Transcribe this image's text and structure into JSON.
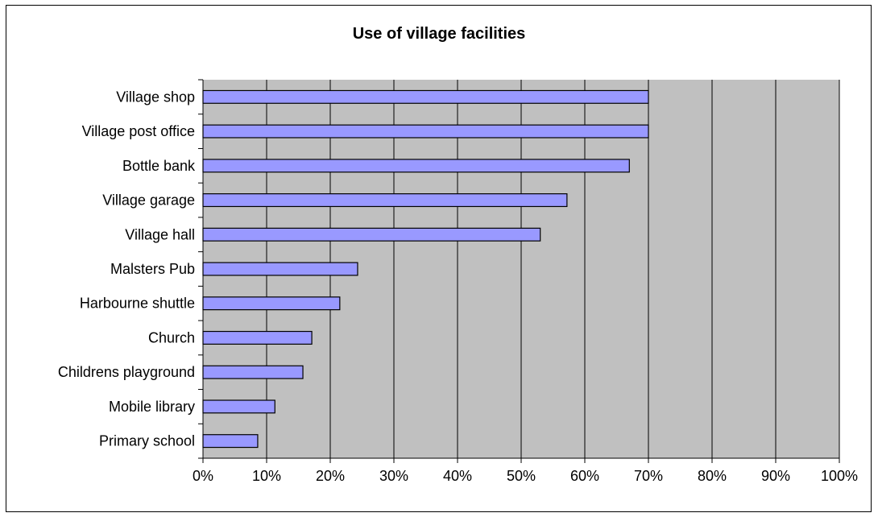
{
  "chart_data": {
    "type": "bar",
    "orientation": "horizontal",
    "title": "Use of village facilities",
    "xlabel": "",
    "ylabel": "",
    "categories": [
      "Village shop",
      "Village post office",
      "Bottle bank",
      "Village garage",
      "Village hall",
      "Malsters Pub",
      "Harbourne shuttle",
      "Church",
      "Childrens playground",
      "Mobile library",
      "Primary school"
    ],
    "values": [
      70,
      70,
      67,
      57.2,
      53,
      24.3,
      21.5,
      17.1,
      15.7,
      11.3,
      8.6
    ],
    "xlim": [
      0,
      100
    ],
    "x_ticks": [
      "0%",
      "10%",
      "20%",
      "30%",
      "40%",
      "50%",
      "60%",
      "70%",
      "80%",
      "90%",
      "100%"
    ],
    "grid": "vertical",
    "legend": "none",
    "colors": {
      "bar_fill": "#9999ff",
      "bar_stroke": "#000000",
      "plot_background": "#c0c0c0",
      "gridline": "#000000"
    }
  }
}
